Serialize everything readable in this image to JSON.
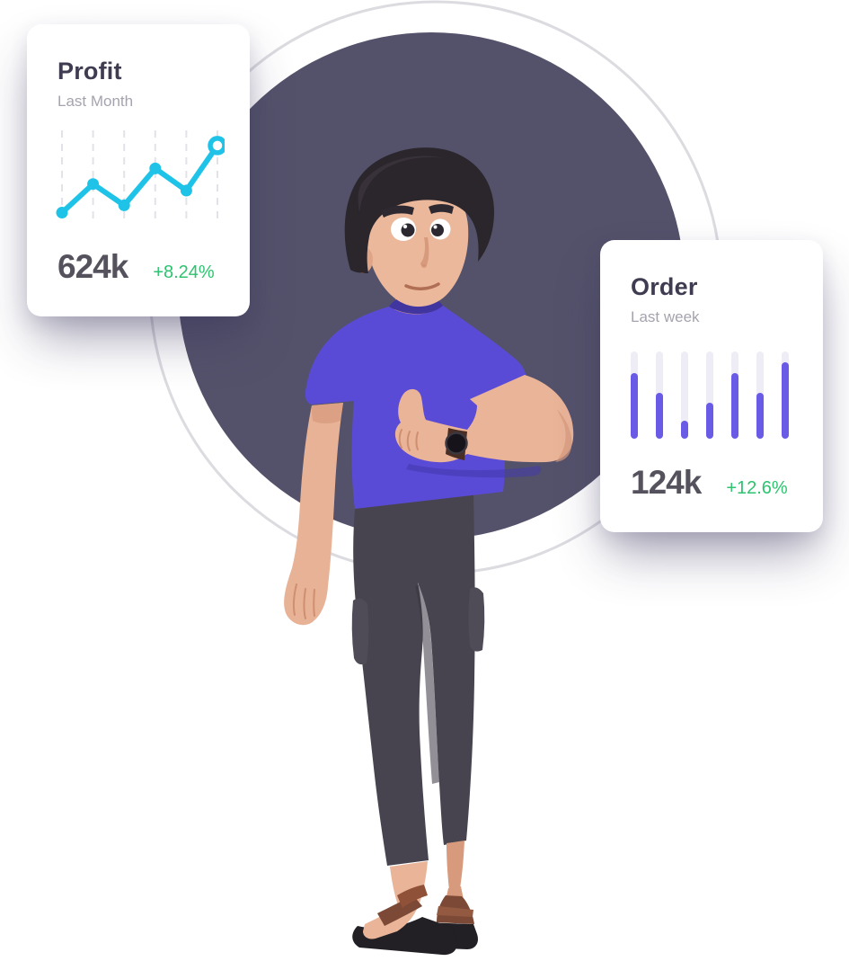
{
  "scene": {
    "background_color": "#ffffff",
    "big_circle_color": "#54526b",
    "outline_ring_color": "#dcdbe0",
    "illustration": "3d man in purple t-shirt giving thumbs up, wearing wristwatch, dark pants and brown sandals"
  },
  "cards": [
    {
      "title": "Profit",
      "subtitle": "Last Month",
      "value": "624k",
      "change": "+8.24%",
      "change_color": "#2dc36f"
    },
    {
      "title": "Order",
      "subtitle": "Last week",
      "value": "124k",
      "change": "+12.6%",
      "change_color": "#2dc36f"
    }
  ],
  "chart_data": [
    {
      "type": "line",
      "title": "Profit – Last Month",
      "x": [
        1,
        2,
        3,
        4,
        5,
        6
      ],
      "values": [
        6,
        41,
        15,
        60,
        33,
        88
      ],
      "unit": "percent-of-chart-height (estimated, no axis labels shown)",
      "line_color": "#1fc3e8",
      "grid": "dashed-vertical",
      "grid_color": "#e3e2e9",
      "last_point_style": "open-ring",
      "summary_value": "624k",
      "summary_change": "+8.24%"
    },
    {
      "type": "bar",
      "title": "Order – Last week",
      "x": [
        1,
        2,
        3,
        4,
        5,
        6,
        7
      ],
      "values": [
        75,
        53,
        21,
        41,
        75,
        53,
        88
      ],
      "unit": "percent-of-track-height (estimated, no axis labels shown)",
      "bar_color": "#6a5be6",
      "track_color": "#eeedf5",
      "summary_value": "124k",
      "summary_change": "+12.6%"
    }
  ]
}
